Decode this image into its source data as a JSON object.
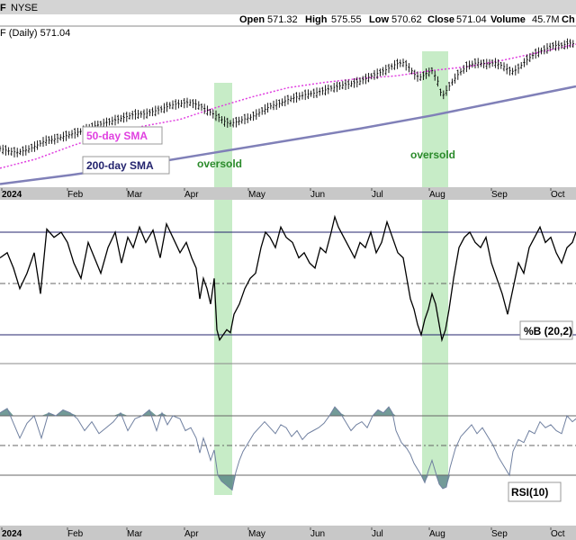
{
  "header": {
    "symbol_fragment": "F",
    "exchange": "NYSE",
    "open_label": "Open",
    "open": "571.32",
    "high_label": "High",
    "high": "575.55",
    "low_label": "Low",
    "low": "570.62",
    "close_label": "Close",
    "close": "571.04",
    "volume_label": "Volume",
    "volume": "45.7M",
    "trailing": "Ch",
    "price_label": "F (Daily) 571.04"
  },
  "colors": {
    "price_bars": "#000000",
    "sma50": "#e040e0",
    "sma200": "#8080b8",
    "highlight": "#b4e6b4",
    "oversold_text": "#2a8a2a",
    "rsi_line": "#7080a0",
    "rsi_fill": "#5a8a86",
    "pctb_line": "#000000",
    "ref_line": "#23236e",
    "axis_bg": "#c8c8c8"
  },
  "chart_data": [
    {
      "type": "line",
      "panel": "price",
      "ylim": [
        460,
        580
      ],
      "x_months": [
        "2024",
        "Feb",
        "Mar",
        "Apr",
        "May",
        "Jun",
        "Jul",
        "Aug",
        "Sep",
        "Oct"
      ],
      "series": [
        {
          "name": "50-day SMA",
          "style": "dotted",
          "values": [
            [
              0,
              473
            ],
            [
              40,
              480
            ],
            [
              80,
              490
            ],
            [
              120,
              499
            ],
            [
              160,
              505
            ],
            [
              200,
              510
            ],
            [
              240,
              519
            ],
            [
              280,
              527
            ],
            [
              320,
              534
            ],
            [
              360,
              538
            ],
            [
              400,
              541
            ],
            [
              440,
              543
            ],
            [
              480,
              547
            ],
            [
              520,
              550
            ],
            [
              560,
              555
            ],
            [
              600,
              561
            ],
            [
              640,
              567
            ]
          ]
        },
        {
          "name": "200-day SMA",
          "style": "solid",
          "values": [
            [
              0,
              461
            ],
            [
              80,
              468
            ],
            [
              160,
              476
            ],
            [
              240,
              485
            ],
            [
              320,
              494
            ],
            [
              400,
              503
            ],
            [
              480,
              513
            ],
            [
              560,
              524
            ],
            [
              640,
              535
            ]
          ]
        },
        {
          "name": "price",
          "values": [
            [
              0,
              488
            ],
            [
              10,
              486
            ],
            [
              20,
              485
            ],
            [
              30,
              487
            ],
            [
              40,
              490
            ],
            [
              50,
              494
            ],
            [
              60,
              495
            ],
            [
              70,
              497
            ],
            [
              80,
              499
            ],
            [
              90,
              501
            ],
            [
              100,
              504
            ],
            [
              110,
              506
            ],
            [
              120,
              508
            ],
            [
              130,
              510
            ],
            [
              140,
              512
            ],
            [
              150,
              514
            ],
            [
              160,
              514
            ],
            [
              170,
              516
            ],
            [
              180,
              518
            ],
            [
              190,
              521
            ],
            [
              200,
              522
            ],
            [
              210,
              523
            ],
            [
              220,
              521
            ],
            [
              230,
              517
            ],
            [
              240,
              513
            ],
            [
              248,
              509
            ],
            [
              255,
              507
            ],
            [
              262,
              508
            ],
            [
              270,
              510
            ],
            [
              280,
              512
            ],
            [
              290,
              516
            ],
            [
              300,
              520
            ],
            [
              310,
              522
            ],
            [
              320,
              525
            ],
            [
              330,
              527
            ],
            [
              340,
              529
            ],
            [
              350,
              530
            ],
            [
              360,
              532
            ],
            [
              370,
              534
            ],
            [
              380,
              536
            ],
            [
              390,
              537
            ],
            [
              400,
              539
            ],
            [
              410,
              542
            ],
            [
              420,
              545
            ],
            [
              430,
              548
            ],
            [
              440,
              552
            ],
            [
              448,
              553
            ],
            [
              455,
              549
            ],
            [
              462,
              543
            ],
            [
              468,
              542
            ],
            [
              474,
              545
            ],
            [
              480,
              547
            ],
            [
              486,
              540
            ],
            [
              491,
              527
            ],
            [
              496,
              532
            ],
            [
              502,
              538
            ],
            [
              510,
              545
            ],
            [
              520,
              551
            ],
            [
              530,
              553
            ],
            [
              540,
              552
            ],
            [
              550,
              553
            ],
            [
              560,
              550
            ],
            [
              568,
              546
            ],
            [
              575,
              548
            ],
            [
              585,
              555
            ],
            [
              595,
              560
            ],
            [
              605,
              563
            ],
            [
              615,
              566
            ],
            [
              625,
              566
            ],
            [
              632,
              568
            ],
            [
              640,
              567
            ]
          ]
        }
      ],
      "annotations": [
        "oversold",
        "oversold"
      ]
    },
    {
      "type": "line",
      "panel": "pctb",
      "label": "%B (20,2)",
      "ylim": [
        -0.3,
        1.2
      ],
      "reference_levels": [
        1.0,
        0.5,
        0.0
      ],
      "values": [
        [
          0,
          0.75
        ],
        [
          8,
          0.8
        ],
        [
          15,
          0.65
        ],
        [
          22,
          0.45
        ],
        [
          30,
          0.6
        ],
        [
          38,
          0.8
        ],
        [
          45,
          0.4
        ],
        [
          52,
          1.03
        ],
        [
          60,
          0.95
        ],
        [
          68,
          1.0
        ],
        [
          75,
          0.9
        ],
        [
          82,
          0.7
        ],
        [
          90,
          0.55
        ],
        [
          98,
          0.9
        ],
        [
          105,
          0.75
        ],
        [
          112,
          0.6
        ],
        [
          120,
          0.85
        ],
        [
          128,
          1.0
        ],
        [
          135,
          0.7
        ],
        [
          142,
          0.95
        ],
        [
          148,
          0.85
        ],
        [
          155,
          1.05
        ],
        [
          162,
          0.9
        ],
        [
          170,
          1.02
        ],
        [
          178,
          0.75
        ],
        [
          185,
          1.08
        ],
        [
          192,
          0.95
        ],
        [
          200,
          0.8
        ],
        [
          207,
          0.9
        ],
        [
          213,
          0.75
        ],
        [
          218,
          0.65
        ],
        [
          222,
          0.35
        ],
        [
          226,
          0.55
        ],
        [
          230,
          0.45
        ],
        [
          234,
          0.3
        ],
        [
          238,
          0.55
        ],
        [
          241,
          0.05
        ],
        [
          244,
          -0.05
        ],
        [
          248,
          0.0
        ],
        [
          252,
          0.05
        ],
        [
          256,
          0.02
        ],
        [
          260,
          0.2
        ],
        [
          266,
          0.3
        ],
        [
          272,
          0.45
        ],
        [
          278,
          0.55
        ],
        [
          284,
          0.6
        ],
        [
          290,
          0.85
        ],
        [
          295,
          1.0
        ],
        [
          300,
          0.95
        ],
        [
          306,
          0.85
        ],
        [
          312,
          1.05
        ],
        [
          318,
          0.95
        ],
        [
          325,
          0.9
        ],
        [
          332,
          0.75
        ],
        [
          338,
          0.8
        ],
        [
          344,
          0.7
        ],
        [
          350,
          0.65
        ],
        [
          356,
          0.85
        ],
        [
          362,
          0.8
        ],
        [
          368,
          1.0
        ],
        [
          372,
          1.15
        ],
        [
          376,
          1.05
        ],
        [
          382,
          0.95
        ],
        [
          388,
          0.85
        ],
        [
          394,
          0.75
        ],
        [
          400,
          0.9
        ],
        [
          406,
          0.85
        ],
        [
          412,
          1.0
        ],
        [
          418,
          0.8
        ],
        [
          424,
          0.9
        ],
        [
          430,
          1.1
        ],
        [
          436,
          0.95
        ],
        [
          442,
          0.8
        ],
        [
          448,
          0.75
        ],
        [
          452,
          0.55
        ],
        [
          456,
          0.35
        ],
        [
          460,
          0.25
        ],
        [
          464,
          0.1
        ],
        [
          468,
          0.0
        ],
        [
          472,
          0.15
        ],
        [
          476,
          0.25
        ],
        [
          480,
          0.4
        ],
        [
          484,
          0.3
        ],
        [
          488,
          0.1
        ],
        [
          491,
          -0.05
        ],
        [
          495,
          0.05
        ],
        [
          499,
          0.25
        ],
        [
          504,
          0.55
        ],
        [
          510,
          0.85
        ],
        [
          516,
          0.95
        ],
        [
          522,
          1.0
        ],
        [
          528,
          0.9
        ],
        [
          534,
          0.85
        ],
        [
          540,
          0.95
        ],
        [
          546,
          0.7
        ],
        [
          552,
          0.55
        ],
        [
          558,
          0.4
        ],
        [
          564,
          0.2
        ],
        [
          570,
          0.45
        ],
        [
          576,
          0.7
        ],
        [
          582,
          0.6
        ],
        [
          588,
          0.85
        ],
        [
          594,
          0.95
        ],
        [
          600,
          1.05
        ],
        [
          606,
          0.9
        ],
        [
          612,
          0.95
        ],
        [
          618,
          0.8
        ],
        [
          624,
          0.7
        ],
        [
          630,
          0.85
        ],
        [
          636,
          0.9
        ],
        [
          640,
          1.0
        ]
      ]
    },
    {
      "type": "area",
      "panel": "rsi",
      "label": "RSI(10)",
      "ylim": [
        10,
        90
      ],
      "reference_levels": [
        70,
        50,
        30
      ],
      "values": [
        [
          0,
          72
        ],
        [
          8,
          75
        ],
        [
          15,
          65
        ],
        [
          22,
          55
        ],
        [
          30,
          65
        ],
        [
          38,
          70
        ],
        [
          46,
          55
        ],
        [
          54,
          72
        ],
        [
          62,
          70
        ],
        [
          70,
          74
        ],
        [
          78,
          72
        ],
        [
          86,
          68
        ],
        [
          94,
          60
        ],
        [
          102,
          66
        ],
        [
          110,
          58
        ],
        [
          118,
          62
        ],
        [
          126,
          66
        ],
        [
          134,
          72
        ],
        [
          142,
          60
        ],
        [
          150,
          68
        ],
        [
          158,
          70
        ],
        [
          166,
          74
        ],
        [
          174,
          60
        ],
        [
          180,
          72
        ],
        [
          186,
          64
        ],
        [
          192,
          70
        ],
        [
          200,
          68
        ],
        [
          206,
          60
        ],
        [
          212,
          62
        ],
        [
          218,
          55
        ],
        [
          222,
          45
        ],
        [
          226,
          55
        ],
        [
          230,
          48
        ],
        [
          234,
          40
        ],
        [
          238,
          47
        ],
        [
          242,
          30
        ],
        [
          246,
          26
        ],
        [
          250,
          24
        ],
        [
          254,
          22
        ],
        [
          258,
          20
        ],
        [
          262,
          32
        ],
        [
          266,
          40
        ],
        [
          270,
          46
        ],
        [
          276,
          52
        ],
        [
          282,
          58
        ],
        [
          288,
          62
        ],
        [
          294,
          66
        ],
        [
          300,
          62
        ],
        [
          306,
          58
        ],
        [
          312,
          64
        ],
        [
          318,
          62
        ],
        [
          324,
          56
        ],
        [
          330,
          60
        ],
        [
          336,
          54
        ],
        [
          342,
          58
        ],
        [
          348,
          60
        ],
        [
          354,
          62
        ],
        [
          360,
          65
        ],
        [
          366,
          70
        ],
        [
          372,
          76
        ],
        [
          378,
          72
        ],
        [
          384,
          66
        ],
        [
          390,
          60
        ],
        [
          396,
          64
        ],
        [
          402,
          66
        ],
        [
          408,
          62
        ],
        [
          414,
          70
        ],
        [
          420,
          74
        ],
        [
          426,
          72
        ],
        [
          432,
          76
        ],
        [
          436,
          72
        ],
        [
          440,
          60
        ],
        [
          446,
          52
        ],
        [
          452,
          48
        ],
        [
          456,
          44
        ],
        [
          460,
          38
        ],
        [
          464,
          34
        ],
        [
          468,
          30
        ],
        [
          472,
          25
        ],
        [
          476,
          33
        ],
        [
          480,
          40
        ],
        [
          484,
          32
        ],
        [
          488,
          24
        ],
        [
          492,
          21
        ],
        [
          496,
          22
        ],
        [
          500,
          35
        ],
        [
          506,
          48
        ],
        [
          512,
          56
        ],
        [
          518,
          60
        ],
        [
          524,
          64
        ],
        [
          530,
          58
        ],
        [
          536,
          62
        ],
        [
          542,
          56
        ],
        [
          548,
          50
        ],
        [
          554,
          42
        ],
        [
          560,
          36
        ],
        [
          566,
          30
        ],
        [
          570,
          46
        ],
        [
          576,
          54
        ],
        [
          582,
          52
        ],
        [
          588,
          60
        ],
        [
          594,
          58
        ],
        [
          600,
          66
        ],
        [
          606,
          62
        ],
        [
          612,
          64
        ],
        [
          618,
          60
        ],
        [
          624,
          58
        ],
        [
          630,
          70
        ],
        [
          636,
          66
        ],
        [
          640,
          68
        ]
      ]
    }
  ],
  "labels": {
    "sma50": "50-day SMA",
    "sma200": "200-day SMA",
    "oversold_1": "oversold",
    "oversold_2": "oversold",
    "pctb": "%B (20,2)",
    "rsi": "RSI(10)"
  },
  "axis_months": [
    "2024",
    "Feb",
    "Mar",
    "Apr",
    "May",
    "Jun",
    "Jul",
    "Aug",
    "Sep",
    "Oct"
  ]
}
